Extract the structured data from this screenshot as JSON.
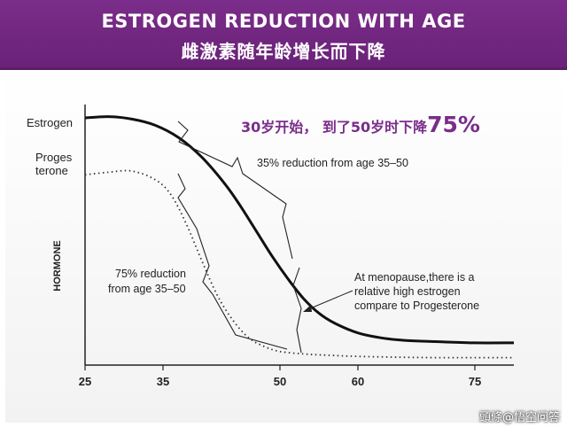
{
  "header": {
    "title_en": "ESTROGEN REDUCTION WITH AGE",
    "title_zh": "雌激素随年龄增长而下降",
    "background": "#6a2278"
  },
  "chart_data": {
    "type": "line",
    "title": "ESTROGEN REDUCTION WITH AGE",
    "subtitle": "雌激素随年龄增长而下降",
    "xlabel": "",
    "ylabel": "HORMONE",
    "xlim": [
      25,
      80
    ],
    "ylim": [
      0,
      100
    ],
    "x_ticks": [
      25,
      35,
      50,
      60,
      75
    ],
    "grid": false,
    "series": [
      {
        "name": "Estrogen",
        "style": "solid",
        "color": "#111111",
        "x": [
          25,
          28,
          31,
          34,
          37,
          40,
          43,
          45,
          47,
          49,
          51,
          53,
          55,
          57,
          60,
          63,
          66,
          70,
          75,
          80
        ],
        "y": [
          100,
          100.5,
          99.5,
          97,
          92,
          84,
          73,
          64,
          54,
          44,
          35,
          27,
          21,
          17,
          13,
          11,
          10,
          9.5,
          9,
          9
        ]
      },
      {
        "name": "Progesterone",
        "label_lines": [
          "Proges",
          "terone"
        ],
        "style": "dotted",
        "color": "#333333",
        "x": [
          25,
          28,
          31,
          34,
          36,
          38,
          40,
          42,
          44,
          46,
          48,
          50,
          53,
          56,
          60,
          65,
          70,
          75,
          80
        ],
        "y": [
          77,
          78,
          78.5,
          75,
          69,
          57,
          42,
          28,
          18,
          11,
          7.5,
          5.5,
          4.5,
          4,
          3.5,
          3.2,
          3,
          3,
          3
        ]
      }
    ],
    "annotations": {
      "headline_prefix": "30岁开始， 到了50岁时下降",
      "headline_percent": "75%",
      "estrogen_reduction": "35% reduction from age 35–50",
      "progesterone_reduction_line1": "75% reduction",
      "progesterone_reduction_line2": "from age 35–50",
      "menopause_line1": "At menopause,there is a",
      "menopause_line2": "relative high estrogen",
      "menopause_line3": "compare to Progesterone"
    },
    "colors": {
      "headline": "#7a2d8a",
      "axis": "#222222"
    }
  },
  "watermark": "頭條@悟空问答"
}
